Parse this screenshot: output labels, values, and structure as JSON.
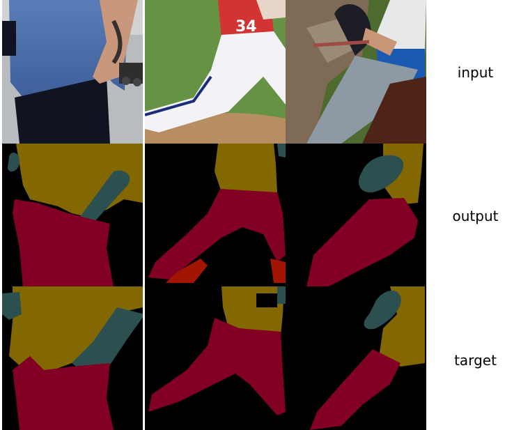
{
  "row_labels": {
    "input": "input",
    "output": "output",
    "target": "target"
  },
  "colors": {
    "upper_clothes": "#836700",
    "pants": "#820023",
    "arm": "#2c5050",
    "shoes": "#a21500",
    "background": "#000000"
  },
  "grid": {
    "rows": 3,
    "columns": 3
  }
}
